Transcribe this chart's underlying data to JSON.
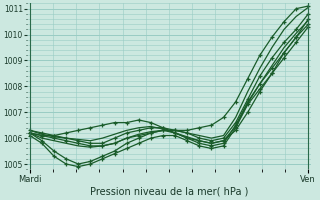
{
  "xlabel": "Pression niveau de la mer( hPa )",
  "ylim": [
    1004.8,
    1011.2
  ],
  "yticks": [
    1005,
    1006,
    1007,
    1008,
    1009,
    1010,
    1011
  ],
  "bg_color": "#cce8e0",
  "grid_color": "#99ccc4",
  "line_color": "#1a5c2a",
  "xtick_labels": [
    "Mardi",
    "Ven"
  ],
  "xtick_pos": [
    0,
    1
  ],
  "n_points": 24,
  "series": [
    [
      1006.2,
      1006.1,
      1006.0,
      1005.9,
      1005.8,
      1005.7,
      1005.7,
      1005.8,
      1006.0,
      1006.1,
      1006.2,
      1006.3,
      1006.3,
      1006.3,
      1006.4,
      1006.5,
      1006.8,
      1007.4,
      1008.3,
      1009.2,
      1009.9,
      1010.5,
      1011.0,
      1011.1
    ],
    [
      1006.2,
      1006.1,
      1006.1,
      1006.2,
      1006.3,
      1006.4,
      1006.5,
      1006.6,
      1006.6,
      1006.7,
      1006.6,
      1006.4,
      1006.2,
      1006.0,
      1005.9,
      1005.8,
      1005.9,
      1006.3,
      1007.0,
      1007.8,
      1008.5,
      1009.3,
      1009.9,
      1010.4
    ],
    [
      1006.3,
      1006.2,
      1006.1,
      1006.0,
      1005.9,
      1005.8,
      1005.8,
      1006.0,
      1006.2,
      1006.3,
      1006.4,
      1006.4,
      1006.3,
      1006.2,
      1006.0,
      1005.9,
      1006.0,
      1006.6,
      1007.5,
      1008.4,
      1009.1,
      1009.7,
      1010.2,
      1010.8
    ],
    [
      1006.2,
      1005.9,
      1005.5,
      1005.2,
      1005.0,
      1005.1,
      1005.3,
      1005.5,
      1005.8,
      1006.0,
      1006.2,
      1006.3,
      1006.2,
      1006.0,
      1005.8,
      1005.7,
      1005.8,
      1006.5,
      1007.4,
      1008.1,
      1008.7,
      1009.3,
      1009.9,
      1010.6
    ],
    [
      1006.1,
      1005.8,
      1005.3,
      1005.0,
      1004.9,
      1005.0,
      1005.2,
      1005.4,
      1005.6,
      1005.8,
      1006.0,
      1006.1,
      1006.1,
      1005.9,
      1005.7,
      1005.6,
      1005.7,
      1006.4,
      1007.3,
      1007.9,
      1008.5,
      1009.1,
      1009.7,
      1010.3
    ]
  ],
  "smooth_series": [
    [
      1006.2,
      1006.0,
      1005.9,
      1005.8,
      1005.7,
      1005.65,
      1005.7,
      1005.8,
      1006.0,
      1006.15,
      1006.25,
      1006.3,
      1006.3,
      1006.2,
      1006.1,
      1006.0,
      1006.1,
      1006.8,
      1007.8,
      1008.7,
      1009.5,
      1010.2,
      1010.7,
      1011.05
    ],
    [
      1006.3,
      1006.15,
      1006.05,
      1006.0,
      1005.95,
      1005.9,
      1006.0,
      1006.15,
      1006.3,
      1006.4,
      1006.45,
      1006.35,
      1006.2,
      1006.05,
      1005.9,
      1005.8,
      1005.9,
      1006.45,
      1007.35,
      1008.1,
      1008.8,
      1009.5,
      1010.05,
      1010.55
    ]
  ]
}
